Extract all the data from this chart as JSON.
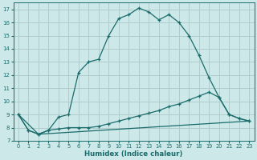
{
  "xlabel": "Humidex (Indice chaleur)",
  "bg_color": "#cde8e8",
  "grid_color": "#b0cccc",
  "line_color": "#1a6b6b",
  "xlim": [
    -0.5,
    23.5
  ],
  "ylim": [
    7,
    17.5
  ],
  "xticks": [
    0,
    1,
    2,
    3,
    4,
    5,
    6,
    7,
    8,
    9,
    10,
    11,
    12,
    13,
    14,
    15,
    16,
    17,
    18,
    19,
    20,
    21,
    22,
    23
  ],
  "yticks": [
    7,
    8,
    9,
    10,
    11,
    12,
    13,
    14,
    15,
    16,
    17
  ],
  "series1_x": [
    0,
    1,
    2,
    3,
    4,
    5,
    6,
    7,
    8,
    9,
    10,
    11,
    12,
    13,
    14,
    15,
    16,
    17,
    18,
    19,
    20,
    21,
    22,
    23
  ],
  "series1_y": [
    9.0,
    7.8,
    7.5,
    7.8,
    8.8,
    9.0,
    12.2,
    13.0,
    13.2,
    15.0,
    16.3,
    16.6,
    17.1,
    16.8,
    16.2,
    16.6,
    16.0,
    15.0,
    13.5,
    11.8,
    10.3,
    9.0,
    8.7,
    8.5
  ],
  "series2_x": [
    0,
    1,
    2,
    3,
    4,
    5,
    6,
    7,
    8,
    9,
    10,
    11,
    12,
    13,
    14,
    15,
    16,
    17,
    18,
    19,
    20,
    21,
    22,
    23
  ],
  "series2_y": [
    9.0,
    7.8,
    7.5,
    7.8,
    7.9,
    8.0,
    8.0,
    8.0,
    8.1,
    8.3,
    8.5,
    8.7,
    8.9,
    9.1,
    9.3,
    9.6,
    9.8,
    10.1,
    10.4,
    10.7,
    10.3,
    9.0,
    8.7,
    8.5
  ],
  "series3_x": [
    0,
    2,
    23
  ],
  "series3_y": [
    9.0,
    7.5,
    8.5
  ]
}
